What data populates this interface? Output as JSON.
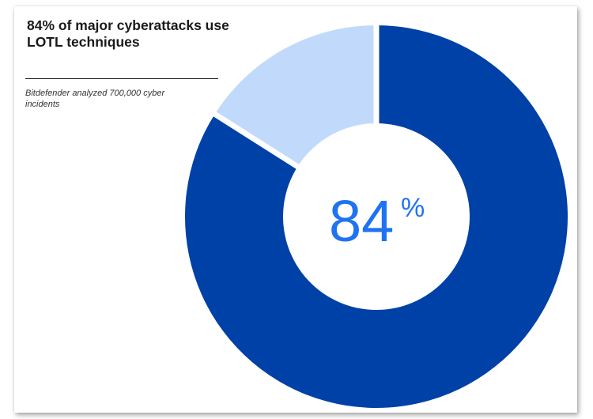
{
  "header": {
    "title": "84% of major cyberattacks use LOTL techniques",
    "source": "Bitdefender analyzed 700,000 cyber incidents"
  },
  "center_label": {
    "value": "84",
    "unit": "%"
  },
  "colors": {
    "major_slice": "#0041a8",
    "minor_slice": "#c1dafb",
    "center_text": "#1f73f0",
    "gap": "#ffffff"
  },
  "chart_data": {
    "type": "pie",
    "variant": "donut",
    "title": "84% of major cyberattacks use LOTL techniques",
    "subtitle": "Bitdefender analyzed 700,000 cyber incidents",
    "values": [
      84,
      16
    ],
    "unit": "%",
    "start": "top, clockwise",
    "legend": "none"
  }
}
